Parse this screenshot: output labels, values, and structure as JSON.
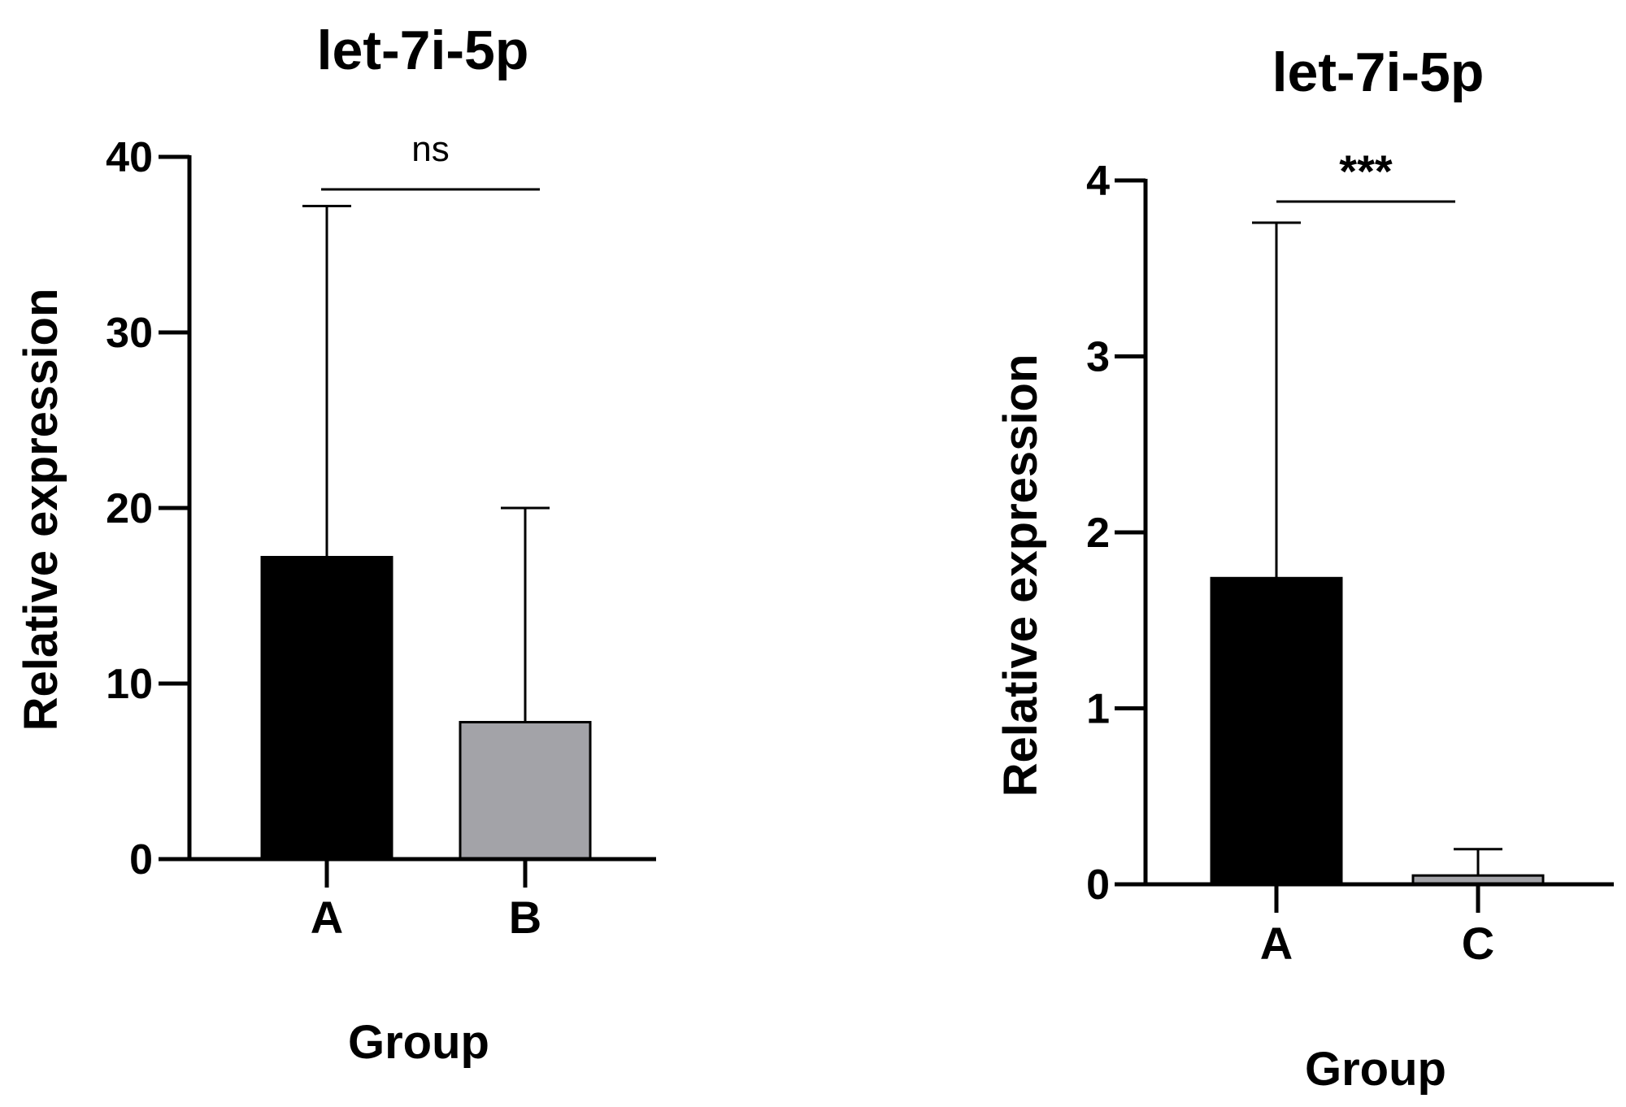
{
  "chart_data": [
    {
      "type": "bar",
      "title": "let-7i-5p",
      "xlabel": "Group",
      "ylabel": "Relative expression",
      "categories": [
        "A",
        "B"
      ],
      "values": [
        17.2,
        7.8
      ],
      "error_upper": [
        37.2,
        20.0
      ],
      "colors": [
        "#000000",
        "#a3a3a8"
      ],
      "ylim": [
        0,
        40
      ],
      "yticks": [
        0,
        10,
        20,
        30,
        40
      ],
      "significance": {
        "label": "ns",
        "between": [
          "A",
          "B"
        ]
      },
      "grid": false
    },
    {
      "type": "bar",
      "title": "let-7i-5p",
      "xlabel": "Group",
      "ylabel": "Relative expression",
      "categories": [
        "A",
        "C"
      ],
      "values": [
        1.74,
        0.05
      ],
      "error_upper": [
        3.76,
        0.2
      ],
      "colors": [
        "#000000",
        "#a3a3a8"
      ],
      "ylim": [
        0,
        4
      ],
      "yticks": [
        0,
        1,
        2,
        3,
        4
      ],
      "significance": {
        "label": "***",
        "between": [
          "A",
          "C"
        ]
      },
      "grid": false
    }
  ]
}
